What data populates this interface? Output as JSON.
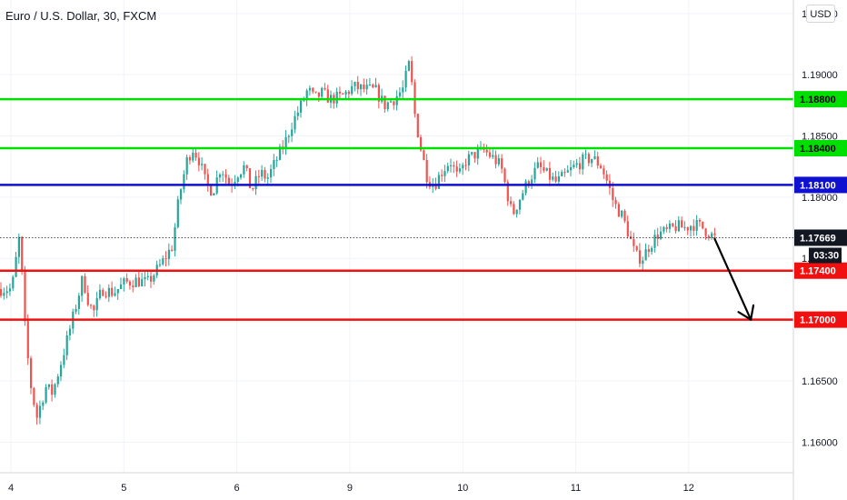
{
  "chart_data": {
    "type": "candlestick",
    "title": "Euro / U.S. Dollar, 30, FXCM",
    "currency": "USD",
    "y_ticks": [
      "1.16000",
      "1.16500",
      "1.17000",
      "1.17500",
      "1.18000",
      "1.18500",
      "1.19000",
      "1.19500"
    ],
    "x_ticks": [
      "4",
      "5",
      "6",
      "9",
      "10",
      "11",
      "12"
    ],
    "ylim": [
      1.1575,
      1.1961
    ],
    "levels": [
      {
        "value": 1.188,
        "label": "1.18800",
        "color": "#00e000"
      },
      {
        "value": 1.184,
        "label": "1.18400",
        "color": "#00e000"
      },
      {
        "value": 1.181,
        "label": "1.18100",
        "color": "#1010d0"
      },
      {
        "value": 1.174,
        "label": "1.17400",
        "color": "#f01010"
      },
      {
        "value": 1.17,
        "label": "1.17000",
        "color": "#f01010"
      }
    ],
    "last_price": {
      "value": 1.17669,
      "label": "1.17669"
    },
    "countdown": "03:30",
    "path": [
      {
        "t": 0.0,
        "p": 1.1725
      },
      {
        "t": 0.03,
        "p": 1.1745
      },
      {
        "t": 0.07,
        "p": 1.177
      },
      {
        "t": 0.11,
        "p": 1.17
      },
      {
        "t": 0.16,
        "p": 1.165
      },
      {
        "t": 0.22,
        "p": 1.162
      },
      {
        "t": 0.3,
        "p": 1.1645
      },
      {
        "t": 0.36,
        "p": 1.164
      },
      {
        "t": 0.45,
        "p": 1.167
      },
      {
        "t": 0.55,
        "p": 1.1705
      },
      {
        "t": 0.63,
        "p": 1.1735
      },
      {
        "t": 0.66,
        "p": 1.172
      },
      {
        "t": 0.72,
        "p": 1.1705
      },
      {
        "t": 0.8,
        "p": 1.1725
      },
      {
        "t": 0.9,
        "p": 1.1722
      },
      {
        "t": 1.0,
        "p": 1.173
      },
      {
        "t": 1.1,
        "p": 1.1732
      },
      {
        "t": 1.2,
        "p": 1.173
      },
      {
        "t": 1.32,
        "p": 1.1745
      },
      {
        "t": 1.42,
        "p": 1.176
      },
      {
        "t": 1.48,
        "p": 1.18
      },
      {
        "t": 1.55,
        "p": 1.183
      },
      {
        "t": 1.6,
        "p": 1.184
      },
      {
        "t": 1.66,
        "p": 1.183
      },
      {
        "t": 1.72,
        "p": 1.181
      },
      {
        "t": 1.78,
        "p": 1.1805
      },
      {
        "t": 1.85,
        "p": 1.1825
      },
      {
        "t": 1.93,
        "p": 1.181
      },
      {
        "t": 2.0,
        "p": 1.182
      },
      {
        "t": 2.06,
        "p": 1.1825
      },
      {
        "t": 2.12,
        "p": 1.1805
      },
      {
        "t": 2.2,
        "p": 1.182
      },
      {
        "t": 2.26,
        "p": 1.1815
      },
      {
        "t": 2.34,
        "p": 1.183
      },
      {
        "t": 2.42,
        "p": 1.1845
      },
      {
        "t": 2.48,
        "p": 1.186
      },
      {
        "t": 2.56,
        "p": 1.1875
      },
      {
        "t": 2.62,
        "p": 1.1888
      },
      {
        "t": 2.68,
        "p": 1.188
      },
      {
        "t": 2.74,
        "p": 1.1885
      },
      {
        "t": 2.82,
        "p": 1.188
      },
      {
        "t": 2.92,
        "p": 1.1882
      },
      {
        "t": 3.02,
        "p": 1.189
      },
      {
        "t": 3.12,
        "p": 1.1888
      },
      {
        "t": 3.22,
        "p": 1.1887
      },
      {
        "t": 3.3,
        "p": 1.1875
      },
      {
        "t": 3.38,
        "p": 1.188
      },
      {
        "t": 3.46,
        "p": 1.1888
      },
      {
        "t": 3.52,
        "p": 1.191
      },
      {
        "t": 3.57,
        "p": 1.1865
      },
      {
        "t": 3.62,
        "p": 1.184
      },
      {
        "t": 3.68,
        "p": 1.1815
      },
      {
        "t": 3.74,
        "p": 1.181
      },
      {
        "t": 3.8,
        "p": 1.182
      },
      {
        "t": 3.88,
        "p": 1.183
      },
      {
        "t": 3.95,
        "p": 1.1815
      },
      {
        "t": 4.02,
        "p": 1.183
      },
      {
        "t": 4.1,
        "p": 1.1835
      },
      {
        "t": 4.18,
        "p": 1.1838
      },
      {
        "t": 4.26,
        "p": 1.1832
      },
      {
        "t": 4.33,
        "p": 1.1825
      },
      {
        "t": 4.38,
        "p": 1.1805
      },
      {
        "t": 4.43,
        "p": 1.1785
      },
      {
        "t": 4.5,
        "p": 1.18
      },
      {
        "t": 4.58,
        "p": 1.1815
      },
      {
        "t": 4.66,
        "p": 1.1825
      },
      {
        "t": 4.74,
        "p": 1.1818
      },
      {
        "t": 4.82,
        "p": 1.1812
      },
      {
        "t": 4.9,
        "p": 1.1818
      },
      {
        "t": 4.98,
        "p": 1.1825
      },
      {
        "t": 5.06,
        "p": 1.183
      },
      {
        "t": 5.14,
        "p": 1.1832
      },
      {
        "t": 5.22,
        "p": 1.1825
      },
      {
        "t": 5.28,
        "p": 1.181
      },
      {
        "t": 5.33,
        "p": 1.1795
      },
      {
        "t": 5.4,
        "p": 1.1785
      },
      {
        "t": 5.46,
        "p": 1.177
      },
      {
        "t": 5.52,
        "p": 1.1752
      },
      {
        "t": 5.58,
        "p": 1.175
      },
      {
        "t": 5.64,
        "p": 1.176
      },
      {
        "t": 5.72,
        "p": 1.177
      },
      {
        "t": 5.8,
        "p": 1.1772
      },
      {
        "t": 5.88,
        "p": 1.1776
      },
      {
        "t": 5.96,
        "p": 1.1775
      },
      {
        "t": 6.03,
        "p": 1.1778
      },
      {
        "t": 6.1,
        "p": 1.1776
      },
      {
        "t": 6.18,
        "p": 1.177
      },
      {
        "t": 6.23,
        "p": 1.1766
      }
    ],
    "forecast": {
      "from": {
        "t": 6.23,
        "p": 1.1766
      },
      "to": {
        "t": 6.55,
        "p": 1.17
      }
    }
  }
}
